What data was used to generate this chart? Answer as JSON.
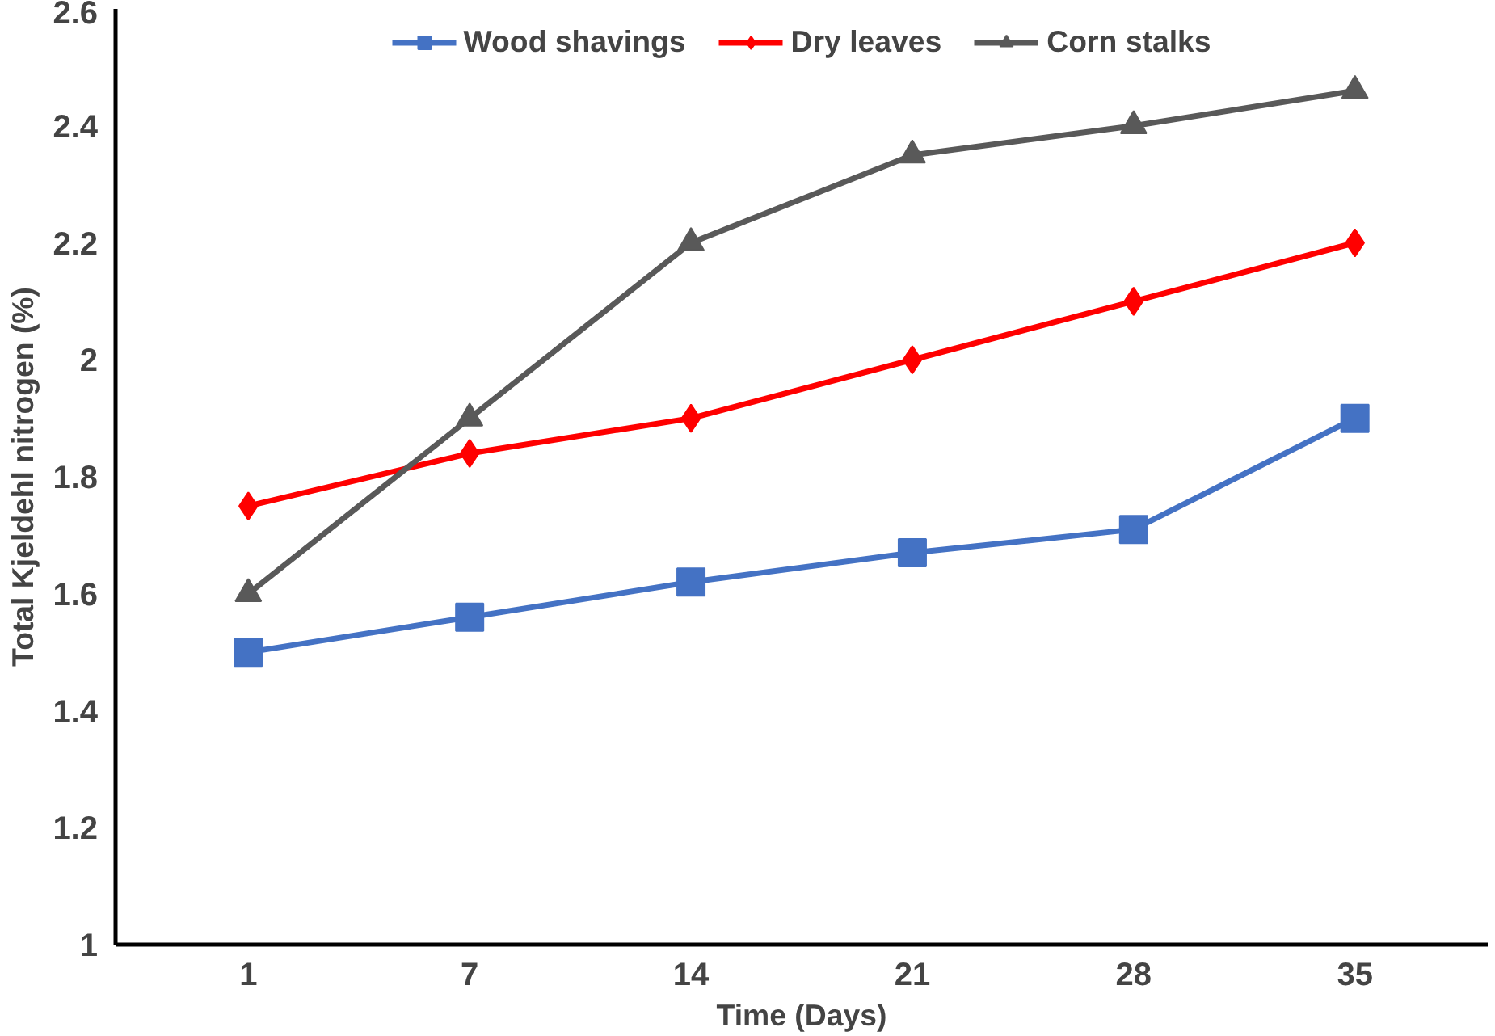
{
  "chart_data": {
    "type": "line",
    "xlabel": "Time (Days)",
    "ylabel": "Total Kjeldehl nitrogen (%)",
    "categories": [
      "1",
      "7",
      "14",
      "21",
      "28",
      "35"
    ],
    "series": [
      {
        "name": "Wood shavings",
        "color": "#4472c4",
        "marker": "square",
        "values": [
          1.5,
          1.56,
          1.62,
          1.67,
          1.71,
          1.9
        ]
      },
      {
        "name": "Dry leaves",
        "color": "#ff0000",
        "marker": "diamond",
        "values": [
          1.75,
          1.84,
          1.9,
          2.0,
          2.1,
          2.2
        ]
      },
      {
        "name": "Corn stalks",
        "color": "#595959",
        "marker": "triangle",
        "values": [
          1.6,
          1.9,
          2.2,
          2.35,
          2.4,
          2.46
        ]
      }
    ],
    "ylim": [
      1,
      2.6
    ],
    "yticks": [
      1,
      1.2,
      1.4,
      1.6,
      1.8,
      2,
      2.2,
      2.4,
      2.6
    ],
    "grid": false,
    "legend": "top",
    "line_style": "solid"
  }
}
